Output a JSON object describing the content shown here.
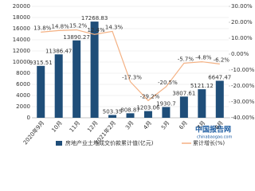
{
  "chart_data": {
    "type": "bar-line",
    "categories": [
      "2020年9月",
      "10月",
      "11月",
      "12月",
      "2021年2月",
      "3月",
      "4月",
      "5月",
      "6月",
      "7月",
      "8月"
    ],
    "series": [
      {
        "name": "房地产业土地成交价款累计值(亿元)",
        "type": "bar",
        "color": "#1f4e79",
        "values": [
          9315.51,
          11386.47,
          13890.27,
          17268.83,
          503.35,
          808.87,
          1203.06,
          1930.7,
          3807.61,
          5121.12,
          6647.47
        ]
      },
      {
        "name": "累计增长(%)",
        "type": "line",
        "axis": "y2",
        "color": "#f4b183",
        "values": [
          13.8,
          14.8,
          15.2,
          12.4,
          14.3,
          -17.3,
          -29.2,
          -20.5,
          -5.7,
          -4.8,
          -6.2
        ],
        "value_labels": [
          "13.8%",
          "14.8%",
          "15.2%",
          "12.4%",
          "14.3%",
          "-17.3%",
          "-29.2%",
          "-20.5%",
          "-5.7%",
          "-4.8%",
          "-6.2%"
        ]
      }
    ],
    "ylim": [
      0,
      20000
    ],
    "yticks": [
      0,
      2000,
      4000,
      6000,
      8000,
      10000,
      12000,
      14000,
      16000,
      18000,
      20000
    ],
    "y2lim": [
      -40,
      30
    ],
    "y2ticks": [
      {
        "value": -40,
        "label": "-40.00%"
      },
      {
        "value": -30,
        "label": "-30.00%"
      },
      {
        "value": -20,
        "label": "-20.00%"
      },
      {
        "value": -10,
        "label": "-10.00%"
      },
      {
        "value": 0,
        "label": "0.00%"
      },
      {
        "value": 10,
        "label": "10.00%"
      },
      {
        "value": 20,
        "label": "20.00%"
      },
      {
        "value": 30,
        "label": "30.00%"
      }
    ],
    "grid": true,
    "watermark": "中国报告网",
    "watermark_url": "chinabaogao.com"
  }
}
